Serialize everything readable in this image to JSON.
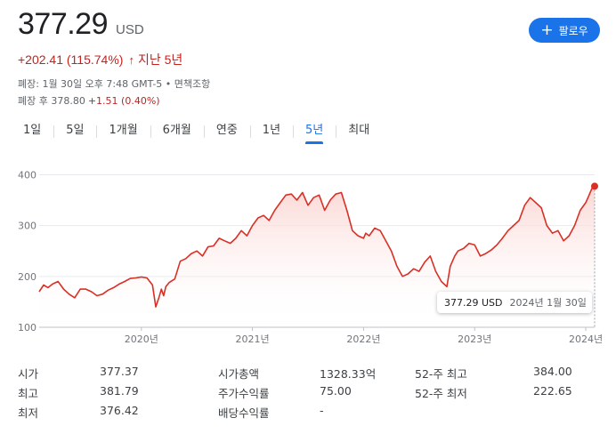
{
  "quote": {
    "price": "377.29",
    "currency": "USD",
    "change": "+202.41 (115.74%)",
    "change_arrow": "↑",
    "period": "지난 5년",
    "closed_info": "폐장: 1월 30일 오후 7:48 GMT-5 • 면책조항",
    "after_hours_label": "폐장 후 378.80",
    "after_hours_change": "+1.51 (0.40%)"
  },
  "follow_button": {
    "label": "팔로우",
    "icon": "plus-icon"
  },
  "tabs": [
    {
      "label": "1일"
    },
    {
      "label": "5일"
    },
    {
      "label": "1개월"
    },
    {
      "label": "6개월"
    },
    {
      "label": "연중"
    },
    {
      "label": "1년"
    },
    {
      "label": "5년",
      "active": true
    },
    {
      "label": "최대"
    }
  ],
  "tooltip": {
    "price": "377.29 USD",
    "date": "2024년 1월 30일"
  },
  "colors": {
    "accent": "#1a73e8",
    "negative_trend_line": "#d93025",
    "fill": "#fce8e6"
  },
  "chart_data": {
    "type": "area",
    "y_ticks": [
      100,
      200,
      300,
      400
    ],
    "ylim": [
      100,
      420
    ],
    "x_tick_labels": [
      "2020년",
      "2021년",
      "2022년",
      "2023년",
      "2024년"
    ],
    "x_ticks": [
      2020,
      2021,
      2022,
      2023,
      2024
    ],
    "xlim": [
      2019.08,
      2024.08
    ],
    "grid": true,
    "series": [
      {
        "x": [
          2019.08,
          2019.12,
          2019.16,
          2019.2,
          2019.25,
          2019.3,
          2019.35,
          2019.4,
          2019.45,
          2019.5,
          2019.55,
          2019.6,
          2019.65,
          2019.7,
          2019.75,
          2019.8,
          2019.85,
          2019.9,
          2019.95,
          2020.0,
          2020.05,
          2020.1,
          2020.13,
          2020.16,
          2020.18,
          2020.2,
          2020.22,
          2020.25,
          2020.3,
          2020.35,
          2020.4,
          2020.45,
          2020.5,
          2020.55,
          2020.6,
          2020.65,
          2020.7,
          2020.75,
          2020.8,
          2020.85,
          2020.9,
          2020.95,
          2021.0,
          2021.05,
          2021.1,
          2021.15,
          2021.2,
          2021.25,
          2021.3,
          2021.35,
          2021.4,
          2021.45,
          2021.5,
          2021.55,
          2021.6,
          2021.65,
          2021.7,
          2021.75,
          2021.8,
          2021.85,
          2021.9,
          2021.95,
          2022.0,
          2022.02,
          2022.05,
          2022.1,
          2022.15,
          2022.2,
          2022.25,
          2022.3,
          2022.35,
          2022.4,
          2022.45,
          2022.5,
          2022.55,
          2022.6,
          2022.65,
          2022.7,
          2022.75,
          2022.78,
          2022.82,
          2022.85,
          2022.9,
          2022.95,
          2023.0,
          2023.05,
          2023.1,
          2023.15,
          2023.2,
          2023.25,
          2023.3,
          2023.35,
          2023.4,
          2023.45,
          2023.5,
          2023.55,
          2023.6,
          2023.65,
          2023.7,
          2023.75,
          2023.8,
          2023.85,
          2023.9,
          2023.95,
          2024.0,
          2024.03,
          2024.06,
          2024.08
        ],
        "y": [
          170,
          183,
          178,
          185,
          190,
          175,
          165,
          158,
          175,
          175,
          170,
          162,
          165,
          173,
          178,
          185,
          190,
          196,
          197,
          199,
          197,
          183,
          140,
          160,
          175,
          162,
          180,
          188,
          195,
          230,
          235,
          245,
          250,
          240,
          258,
          260,
          275,
          270,
          265,
          275,
          290,
          280,
          300,
          315,
          320,
          310,
          330,
          345,
          360,
          362,
          350,
          365,
          340,
          355,
          360,
          330,
          350,
          362,
          365,
          330,
          290,
          280,
          275,
          285,
          280,
          295,
          290,
          270,
          250,
          220,
          200,
          205,
          215,
          210,
          228,
          240,
          210,
          190,
          180,
          220,
          240,
          250,
          255,
          265,
          262,
          240,
          245,
          252,
          262,
          275,
          290,
          300,
          310,
          340,
          355,
          345,
          335,
          300,
          285,
          290,
          270,
          280,
          300,
          330,
          345,
          360,
          375,
          377.29
        ],
        "name": ""
      }
    ]
  }
}
